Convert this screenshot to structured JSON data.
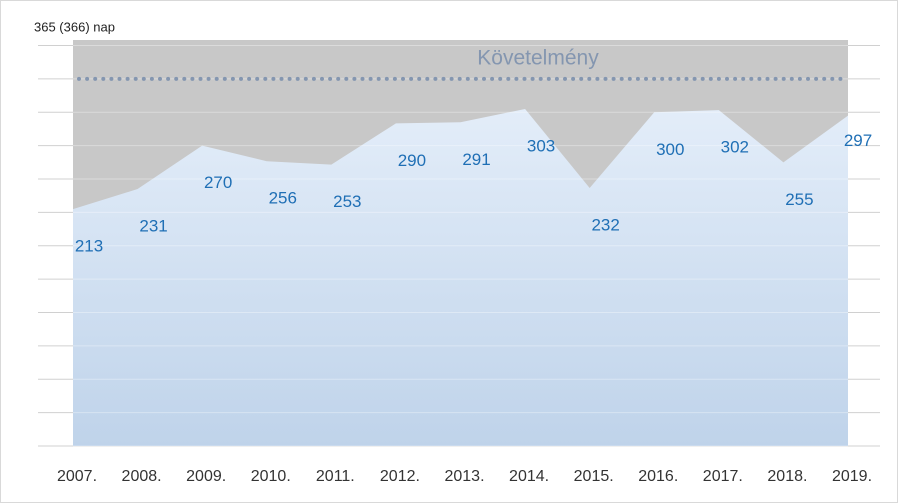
{
  "chart_data": {
    "type": "area",
    "axis_label": "365 (366) nap",
    "categories": [
      "2007.",
      "2008.",
      "2009.",
      "2010.",
      "2011.",
      "2012.",
      "2013.",
      "2014.",
      "2015.",
      "2016.",
      "2017.",
      "2018.",
      "2019."
    ],
    "values": [
      213,
      231,
      270,
      256,
      253,
      290,
      291,
      303,
      232,
      300,
      302,
      255,
      297
    ],
    "ylim": [
      0,
      365
    ],
    "yticks": [
      0,
      30,
      60,
      90,
      120,
      150,
      180,
      210,
      240,
      270,
      300,
      330,
      360
    ],
    "grid": true,
    "requirement": {
      "label": "Követelmény",
      "value": 330
    },
    "color": "#c6daf0",
    "label_color": "#1f6fb5",
    "background_color": "#c8c8c8",
    "requirement_color": "#8496b0"
  }
}
